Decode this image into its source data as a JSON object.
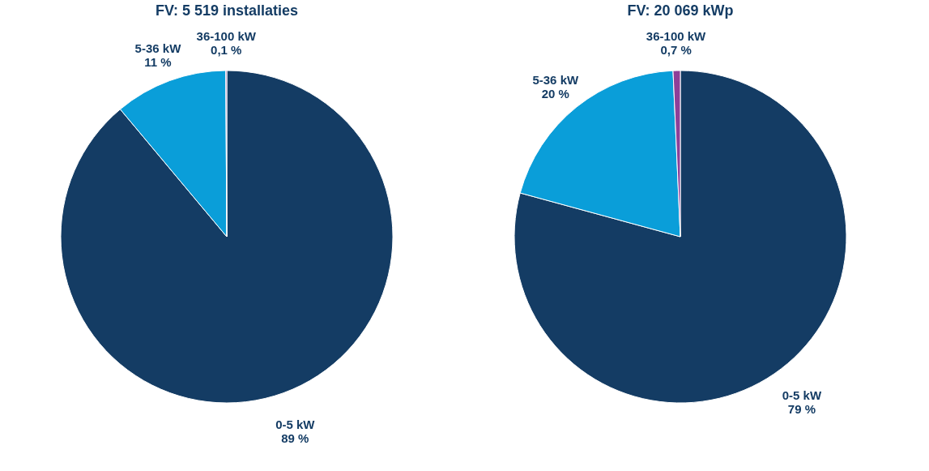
{
  "chart_data": [
    {
      "type": "pie",
      "title": "FV: 5 519 installaties",
      "categories": [
        "0-5 kW",
        "5-36 kW",
        "36-100 kW"
      ],
      "values": [
        89,
        11,
        0.1
      ],
      "colors": [
        "#143c64",
        "#0a9ed9",
        "#8e3f98"
      ],
      "value_labels": [
        "89 %",
        "11 %",
        "0,1 %"
      ]
    },
    {
      "type": "pie",
      "title": "FV: 20 069 kWp",
      "categories": [
        "0-5 kW",
        "5-36 kW",
        "36-100 kW"
      ],
      "values": [
        79,
        20,
        0.7
      ],
      "colors": [
        "#143c64",
        "#0a9ed9",
        "#8e3f98"
      ],
      "value_labels": [
        "79 %",
        "20 %",
        "0,7 %"
      ]
    }
  ]
}
